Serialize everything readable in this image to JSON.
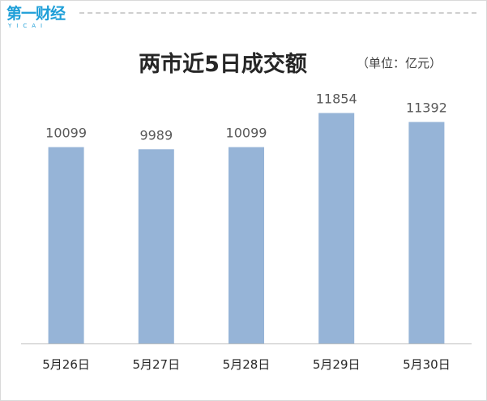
{
  "header": {
    "logo_main": "第一财经",
    "logo_sub": "YICAI"
  },
  "chart_title": "两市近5日成交额",
  "unit_label": "（单位：亿元）",
  "colors": {
    "bar": "#96b4d7",
    "value_label": "#595959",
    "axis_label": "#262626",
    "axis_line": "#bfbfbf",
    "brand": "#1f9fd8"
  },
  "chart_data": {
    "type": "bar",
    "title": "两市近5日成交额",
    "unit": "（单位：亿元）",
    "categories": [
      "5月26日",
      "5月27日",
      "5月28日",
      "5月29日",
      "5月30日"
    ],
    "values": [
      10099,
      9989,
      10099,
      11854,
      11392
    ],
    "data_labels": [
      "10099",
      "9989",
      "10099",
      "11854",
      "11392"
    ],
    "xlabel": "",
    "ylabel": "",
    "ylim": [
      0,
      13500
    ],
    "grid": false,
    "legend": "none"
  }
}
